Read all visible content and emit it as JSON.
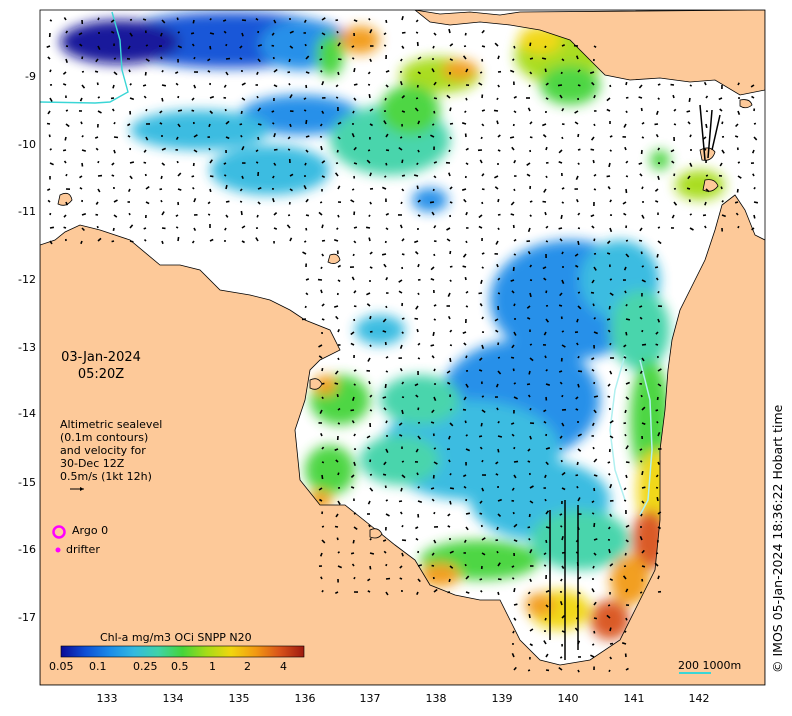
{
  "map": {
    "date_line1": "03-Jan-2024",
    "date_line2": "05:20Z",
    "altimetry_lines": [
      "Altimetric sealevel",
      "(0.1m contours)",
      "and velocity for",
      "30-Dec 12Z",
      "0.5m/s (1kt 12h)"
    ],
    "argo_label": "Argo 0",
    "drifter_label": "drifter",
    "colorbar_title": "Chl-a mg/m3 OCi SNPP N20",
    "colorbar_ticks": [
      "0.05",
      "0.1",
      "0.25",
      "0.5",
      "1",
      "2",
      "4"
    ],
    "scale_label": "200  1000m",
    "credit": "© IMOS 05-Jan-2024 18:36:22 Hobart time",
    "lon_ticks": [
      "133",
      "134",
      "135",
      "136",
      "137",
      "138",
      "139",
      "140",
      "141",
      "142"
    ],
    "lat_ticks": [
      "-9",
      "-10",
      "-11",
      "-12",
      "-13",
      "-14",
      "-15",
      "-16",
      "-17"
    ],
    "colors": {
      "land": "#fdc999",
      "ocean": "#ffffff",
      "argo": "#ff00ff",
      "drifter": "#ff00ff",
      "contour_line": "#b0f0f0",
      "shelf_line": "#3ad6d6"
    },
    "colormap": [
      "#0a0a96",
      "#0d4fd6",
      "#1b8be8",
      "#32b9e0",
      "#3fd3a8",
      "#45d43a",
      "#a6dc17",
      "#f1d60e",
      "#f29a12",
      "#d9531a",
      "#9e1a10"
    ]
  }
}
